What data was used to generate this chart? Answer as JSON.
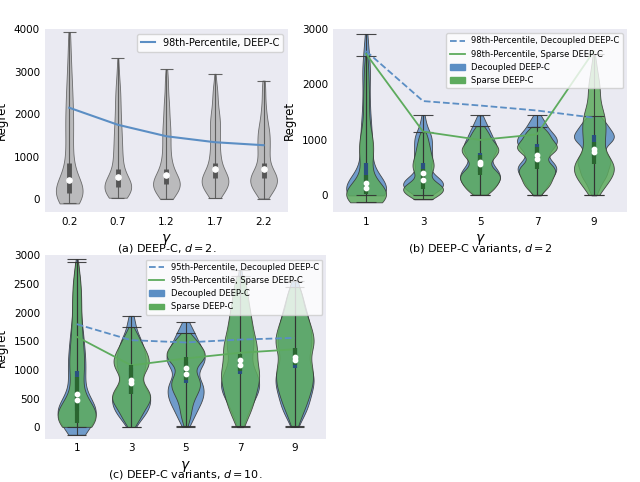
{
  "fig_width": 6.4,
  "fig_height": 4.82,
  "background_color": "#eaeaf2",
  "plot_a": {
    "title": "(a) DEEP-C, $d = 2$.",
    "gamma_vals": [
      0.2,
      0.7,
      1.2,
      1.7,
      2.2
    ],
    "violin_color": "#b0b0b0",
    "violin_edge_color": "#555555",
    "median_vals": [
      450,
      530,
      560,
      700,
      710
    ],
    "q1_vals": [
      150,
      300,
      350,
      500,
      500
    ],
    "q3_vals": [
      850,
      700,
      700,
      850,
      850
    ],
    "whisker_lo": [
      -100,
      10,
      10,
      10,
      10
    ],
    "whisker_hi": [
      3950,
      3350,
      3050,
      2950,
      2800
    ],
    "percentile_98": [
      2150,
      1750,
      1480,
      1340,
      1270
    ],
    "percentile_color": "#5b8ec4",
    "ylabel": "Regret",
    "xlabel": "$\\gamma$",
    "ylim": [
      -300,
      4000
    ],
    "yticks": [
      0,
      1000,
      2000,
      3000,
      4000
    ],
    "legend_label": "98th-Percentile, DEEP-C"
  },
  "plot_b": {
    "title": "(b) DEEP-C variants, $d = 2$",
    "gamma_vals": [
      1,
      3,
      5,
      7,
      9
    ],
    "decoupled_color": "#5b8ec4",
    "sparse_color": "#5dab5d",
    "median_dec": [
      230,
      400,
      600,
      730,
      830
    ],
    "q1_dec": [
      80,
      220,
      420,
      570,
      670
    ],
    "q3_dec": [
      580,
      580,
      770,
      920,
      1080
    ],
    "whisker_lo_dec": [
      0,
      0,
      0,
      0,
      0
    ],
    "whisker_hi_dec": [
      2950,
      1450,
      1450,
      1450,
      1450
    ],
    "median_sp": [
      130,
      280,
      560,
      660,
      780
    ],
    "q1_sp": [
      30,
      120,
      370,
      470,
      570
    ],
    "q3_sp": [
      370,
      470,
      720,
      870,
      970
    ],
    "whisker_lo_sp": [
      -130,
      -80,
      0,
      0,
      0
    ],
    "whisker_hi_sp": [
      2550,
      1150,
      1250,
      1250,
      2550
    ],
    "p98_dec": [
      2600,
      1700,
      1620,
      1530,
      1400
    ],
    "p98_sp": [
      2550,
      1150,
      1000,
      1100,
      2600
    ],
    "ylabel": "Regret",
    "xlabel": "$\\gamma$",
    "ylim": [
      -300,
      3000
    ],
    "yticks": [
      0,
      1000,
      2000,
      3000
    ]
  },
  "plot_c": {
    "title": "(c) DEEP-C variants, $d = 10$.",
    "gamma_vals": [
      1,
      3,
      5,
      7,
      9
    ],
    "decoupled_color": "#5b8ec4",
    "sparse_color": "#5dab5d",
    "median_dec": [
      580,
      780,
      930,
      1080,
      1180
    ],
    "q1_dec": [
      280,
      580,
      780,
      930,
      1030
    ],
    "q3_dec": [
      980,
      1030,
      1130,
      1230,
      1380
    ],
    "whisker_lo_dec": [
      -150,
      0,
      0,
      0,
      0
    ],
    "whisker_hi_dec": [
      2950,
      1950,
      1850,
      2750,
      2550
    ],
    "median_sp": [
      480,
      830,
      1030,
      1180,
      1230
    ],
    "q1_sp": [
      80,
      580,
      830,
      980,
      1080
    ],
    "q3_sp": [
      880,
      1080,
      1230,
      1280,
      1380
    ],
    "whisker_lo_sp": [
      0,
      0,
      0,
      0,
      0
    ],
    "whisker_hi_sp": [
      2900,
      1750,
      1650,
      2650,
      2450
    ],
    "p95_dec": [
      1800,
      1520,
      1480,
      1530,
      1560
    ],
    "p95_sp": [
      1580,
      1080,
      1200,
      1300,
      1360
    ],
    "ylabel": "Regret",
    "xlabel": "$\\gamma$",
    "ylim": [
      -200,
      3000
    ],
    "yticks": [
      0,
      500,
      1000,
      1500,
      2000,
      2500,
      3000
    ]
  }
}
